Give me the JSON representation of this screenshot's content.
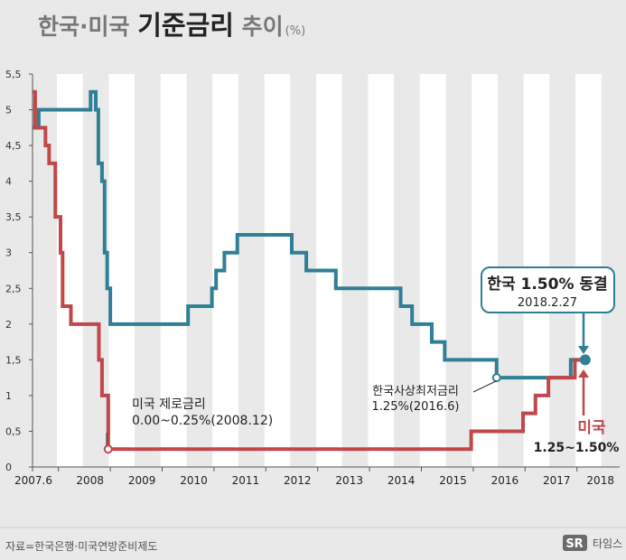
{
  "title": {
    "prefix": "한국·미국 ",
    "emphasis": "기준금리",
    "suffix": " 추이",
    "unit": "(%)"
  },
  "source": "자료=한국은행·미국연방준비제도",
  "brand": {
    "logo": "SR",
    "name": "타임스"
  },
  "colors": {
    "korea": "#2f7f95",
    "usa": "#c0474a",
    "background": "#e9e9e9",
    "band": "#ffffff",
    "annotation_border": "#2f7f95"
  },
  "chart_data": {
    "type": "line",
    "ylim": [
      0,
      5.5
    ],
    "yticks": [
      "0",
      "0.5",
      "1",
      "1.5",
      "2",
      "2.5",
      "3",
      "3.5",
      "4",
      "4.5",
      "5",
      "5.5"
    ],
    "xlim": [
      2007.5,
      2018.25
    ],
    "xticks": [
      {
        "x": 2007.5,
        "label": "2007.6"
      },
      {
        "x": 2008.0,
        "label": "2008"
      },
      {
        "x": 2009.0,
        "label": "2009"
      },
      {
        "x": 2010.0,
        "label": "2010"
      },
      {
        "x": 2011.0,
        "label": "2011"
      },
      {
        "x": 2012.0,
        "label": "2012"
      },
      {
        "x": 2013.0,
        "label": "2013"
      },
      {
        "x": 2014.0,
        "label": "2014"
      },
      {
        "x": 2015.0,
        "label": "2015"
      },
      {
        "x": 2016.0,
        "label": "2016"
      },
      {
        "x": 2017.0,
        "label": "2017"
      },
      {
        "x": 2018.0,
        "label": "2018"
      }
    ],
    "bands": [
      [
        2007.97,
        2008.47
      ],
      [
        2008.97,
        2009.47
      ],
      [
        2009.97,
        2010.47
      ],
      [
        2010.97,
        2011.47
      ],
      [
        2011.97,
        2012.47
      ],
      [
        2012.97,
        2013.47
      ],
      [
        2013.97,
        2014.47
      ],
      [
        2014.97,
        2015.47
      ],
      [
        2015.97,
        2016.47
      ],
      [
        2016.97,
        2017.47
      ],
      [
        2017.97,
        2018.47
      ]
    ],
    "series": [
      {
        "id": "korea",
        "step": true,
        "points": [
          [
            2007.5,
            4.75
          ],
          [
            2007.62,
            5.0
          ],
          [
            2008.62,
            5.25
          ],
          [
            2008.72,
            5.0
          ],
          [
            2008.77,
            4.25
          ],
          [
            2008.84,
            4.0
          ],
          [
            2008.89,
            3.0
          ],
          [
            2008.94,
            2.5
          ],
          [
            2009.0,
            2.0
          ],
          [
            2010.5,
            2.25
          ],
          [
            2010.96,
            2.5
          ],
          [
            2011.04,
            2.75
          ],
          [
            2011.2,
            3.0
          ],
          [
            2011.45,
            3.25
          ],
          [
            2012.5,
            3.0
          ],
          [
            2012.78,
            2.75
          ],
          [
            2013.35,
            2.5
          ],
          [
            2014.6,
            2.25
          ],
          [
            2014.82,
            2.0
          ],
          [
            2015.2,
            1.75
          ],
          [
            2015.45,
            1.5
          ],
          [
            2016.45,
            1.25
          ],
          [
            2017.88,
            1.5
          ],
          [
            2018.16,
            1.5
          ]
        ]
      },
      {
        "id": "usa",
        "step": true,
        "points": [
          [
            2007.5,
            5.25
          ],
          [
            2007.55,
            4.75
          ],
          [
            2007.75,
            4.5
          ],
          [
            2007.82,
            4.25
          ],
          [
            2007.94,
            3.5
          ],
          [
            2008.04,
            3.0
          ],
          [
            2008.08,
            2.25
          ],
          [
            2008.24,
            2.0
          ],
          [
            2008.78,
            1.5
          ],
          [
            2008.84,
            1.0
          ],
          [
            2008.96,
            0.25
          ],
          [
            2015.96,
            0.5
          ],
          [
            2016.96,
            0.75
          ],
          [
            2017.2,
            1.0
          ],
          [
            2017.45,
            1.25
          ],
          [
            2017.96,
            1.5
          ],
          [
            2018.16,
            1.5
          ]
        ]
      }
    ],
    "markers": [
      {
        "series": "usa",
        "x": 2008.96,
        "y": 0.25,
        "style": "hollow"
      },
      {
        "series": "korea",
        "x": 2016.45,
        "y": 1.25,
        "style": "hollow"
      },
      {
        "series": "korea",
        "x": 2018.16,
        "y": 1.5,
        "style": "filled"
      }
    ],
    "annotations": {
      "us_zero_title": "미국 제로금리",
      "us_zero_detail": "0.00~0.25%(2008.12)",
      "kr_low_title": "한국사상최저금리",
      "kr_low_detail": "1.25%(2016.6)",
      "kr_freeze_title": "한국 1.50% 동결",
      "kr_freeze_date": "2018.2.27",
      "us_label_title": "미국",
      "us_label_detail": "1.25~1.50%"
    }
  }
}
